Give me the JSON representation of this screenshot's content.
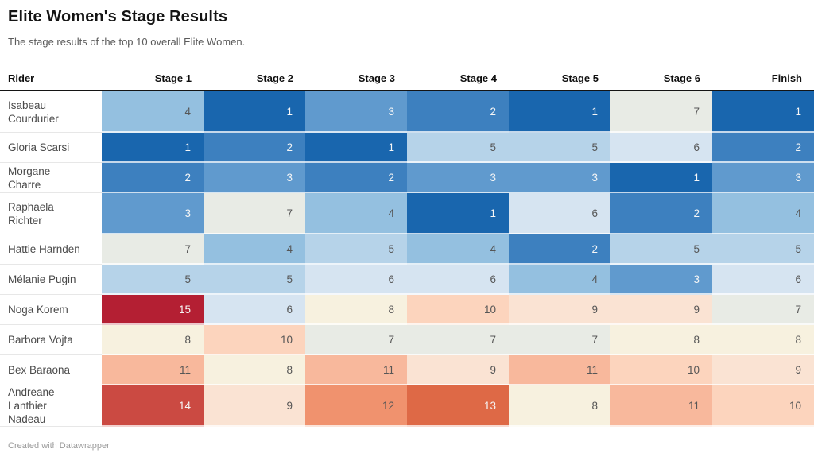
{
  "title": "Elite Women's Stage Results",
  "subtitle": "The stage results of the top 10 overall Elite Women.",
  "footer": "Created with Datawrapper",
  "chart_data": {
    "type": "heatmap",
    "columns": [
      "Rider",
      "Stage 1",
      "Stage 2",
      "Stage 3",
      "Stage 4",
      "Stage 5",
      "Stage 6",
      "Finish"
    ],
    "rows": [
      {
        "rider": "Isabeau Courdurier",
        "name_lines": [
          "Isabeau",
          "Courdurier"
        ],
        "values": [
          4,
          1,
          3,
          2,
          1,
          7,
          1
        ]
      },
      {
        "rider": "Gloria Scarsi",
        "name_lines": [
          "Gloria Scarsi"
        ],
        "values": [
          1,
          2,
          1,
          5,
          5,
          6,
          2
        ]
      },
      {
        "rider": "Morgane Charre",
        "name_lines": [
          "Morgane Charre"
        ],
        "values": [
          2,
          3,
          2,
          3,
          3,
          1,
          3
        ]
      },
      {
        "rider": "Raphaela Richter",
        "name_lines": [
          "Raphaela",
          "Richter"
        ],
        "values": [
          3,
          7,
          4,
          1,
          6,
          2,
          4
        ]
      },
      {
        "rider": "Hattie Harnden",
        "name_lines": [
          "Hattie Harnden"
        ],
        "values": [
          7,
          4,
          5,
          4,
          2,
          5,
          5
        ]
      },
      {
        "rider": "Mélanie Pugin",
        "name_lines": [
          "Mélanie Pugin"
        ],
        "values": [
          5,
          5,
          6,
          6,
          4,
          3,
          6
        ]
      },
      {
        "rider": "Noga Korem",
        "name_lines": [
          "Noga Korem"
        ],
        "values": [
          15,
          6,
          8,
          10,
          9,
          9,
          7
        ]
      },
      {
        "rider": "Barbora Vojta",
        "name_lines": [
          "Barbora Vojta"
        ],
        "values": [
          8,
          10,
          7,
          7,
          7,
          8,
          8
        ]
      },
      {
        "rider": "Bex Baraona",
        "name_lines": [
          "Bex Baraona"
        ],
        "values": [
          11,
          8,
          11,
          9,
          11,
          10,
          9
        ]
      },
      {
        "rider": "Andreane Lanthier Nadeau",
        "name_lines": [
          "Andreane",
          "Lanthier Nadeau"
        ],
        "values": [
          14,
          9,
          12,
          13,
          8,
          11,
          10
        ]
      }
    ],
    "color_scale": {
      "1": "#1966ae",
      "2": "#3d80bf",
      "3": "#609ace",
      "4": "#94c0e0",
      "5": "#b6d3e9",
      "6": "#d6e4f1",
      "7": "#e8ebe5",
      "8": "#f7f1df",
      "9": "#fae3d3",
      "10": "#fcd4bd",
      "11": "#f8b89c",
      "12": "#f0926e",
      "13": "#de6946",
      "14": "#cb4a42",
      "15": "#b41f33"
    },
    "light_text_values": [
      1,
      2,
      3,
      13,
      14,
      15
    ],
    "layout": {
      "row_height_single": 38,
      "row_height_double": 52,
      "legend_position": "none",
      "grid": "off"
    }
  }
}
